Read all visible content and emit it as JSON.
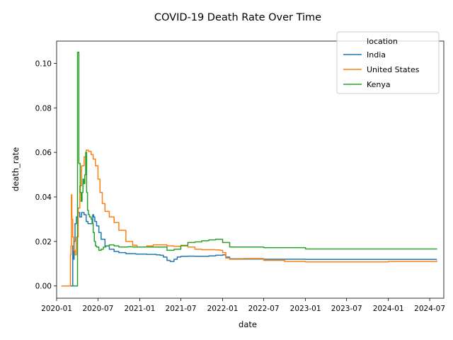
{
  "chart_data": {
    "type": "line",
    "title": "COVID-19 Death Rate Over Time",
    "xlabel": "date",
    "ylabel": "death_rate",
    "xlim": [
      "2020-01-01",
      "2024-09-01"
    ],
    "ylim": [
      -0.0055,
      0.11
    ],
    "xticks": [
      "2020-01",
      "2020-07",
      "2021-01",
      "2021-07",
      "2022-01",
      "2022-07",
      "2023-01",
      "2023-07",
      "2024-01",
      "2024-07"
    ],
    "yticks": [
      0.0,
      0.02,
      0.04,
      0.06,
      0.08,
      0.1
    ],
    "ytick_labels": [
      "0.00",
      "0.02",
      "0.04",
      "0.06",
      "0.08",
      "0.10"
    ],
    "grid": false,
    "legend": {
      "title": "location",
      "placement": "top-right"
    },
    "series": [
      {
        "name": "India",
        "color": "#1f77b4",
        "x": [
          "2020-01-30",
          "2020-03-10",
          "2020-03-12",
          "2020-03-15",
          "2020-03-18",
          "2020-03-22",
          "2020-03-28",
          "2020-04-05",
          "2020-04-12",
          "2020-04-20",
          "2020-05-01",
          "2020-05-10",
          "2020-05-18",
          "2020-05-25",
          "2020-06-01",
          "2020-06-08",
          "2020-06-12",
          "2020-06-17",
          "2020-06-25",
          "2020-07-05",
          "2020-07-15",
          "2020-08-01",
          "2020-08-20",
          "2020-09-10",
          "2020-10-01",
          "2020-11-01",
          "2020-12-15",
          "2021-02-01",
          "2021-03-15",
          "2021-04-01",
          "2021-04-15",
          "2021-05-01",
          "2021-05-15",
          "2021-06-01",
          "2021-06-15",
          "2021-07-01",
          "2021-08-01",
          "2021-09-01",
          "2021-10-01",
          "2021-11-01",
          "2021-12-01",
          "2022-01-01",
          "2022-01-15",
          "2022-02-01",
          "2022-04-01",
          "2022-07-01",
          "2023-01-01",
          "2024-08-01"
        ],
        "y": [
          0.0,
          0.0,
          0.018,
          0.012,
          0.02,
          0.028,
          0.031,
          0.033,
          0.031,
          0.033,
          0.032,
          0.029,
          0.028,
          0.028,
          0.028,
          0.032,
          0.031,
          0.029,
          0.027,
          0.024,
          0.021,
          0.018,
          0.0165,
          0.0155,
          0.015,
          0.0145,
          0.0143,
          0.0142,
          0.014,
          0.0138,
          0.013,
          0.0115,
          0.011,
          0.012,
          0.013,
          0.0133,
          0.0134,
          0.0133,
          0.0133,
          0.0135,
          0.0138,
          0.014,
          0.013,
          0.0122,
          0.0121,
          0.012,
          0.0119,
          0.0119
        ]
      },
      {
        "name": "United States",
        "color": "#ff7f0e",
        "x": [
          "2020-01-22",
          "2020-02-28",
          "2020-03-02",
          "2020-03-04",
          "2020-03-06",
          "2020-03-08",
          "2020-03-12",
          "2020-03-16",
          "2020-03-22",
          "2020-03-28",
          "2020-04-05",
          "2020-04-12",
          "2020-04-20",
          "2020-05-01",
          "2020-05-10",
          "2020-05-20",
          "2020-06-01",
          "2020-06-10",
          "2020-06-20",
          "2020-07-01",
          "2020-07-10",
          "2020-07-20",
          "2020-08-01",
          "2020-08-20",
          "2020-09-10",
          "2020-10-01",
          "2020-11-01",
          "2020-12-01",
          "2020-12-20",
          "2021-01-10",
          "2021-02-01",
          "2021-03-01",
          "2021-04-01",
          "2021-05-01",
          "2021-06-01",
          "2021-07-01",
          "2021-08-01",
          "2021-09-01",
          "2021-10-01",
          "2021-11-01",
          "2021-12-01",
          "2021-12-20",
          "2022-01-01",
          "2022-01-15",
          "2022-02-01",
          "2022-04-01",
          "2022-07-01",
          "2022-10-01",
          "2023-01-01",
          "2023-07-01",
          "2024-01-01",
          "2024-08-01"
        ],
        "y": [
          0.0,
          0.0,
          0.014,
          0.018,
          0.041,
          0.03,
          0.022,
          0.016,
          0.014,
          0.022,
          0.035,
          0.045,
          0.054,
          0.058,
          0.061,
          0.0605,
          0.059,
          0.057,
          0.054,
          0.048,
          0.042,
          0.037,
          0.0335,
          0.031,
          0.0285,
          0.025,
          0.02,
          0.0183,
          0.0175,
          0.0175,
          0.018,
          0.0185,
          0.0185,
          0.018,
          0.0178,
          0.018,
          0.0175,
          0.0165,
          0.0163,
          0.0163,
          0.0162,
          0.016,
          0.015,
          0.0125,
          0.012,
          0.0123,
          0.0115,
          0.011,
          0.0108,
          0.0108,
          0.011,
          0.0115
        ]
      },
      {
        "name": "Kenya",
        "color": "#2ca02c",
        "x": [
          "2020-03-13",
          "2020-03-25",
          "2020-03-27",
          "2020-03-29",
          "2020-03-31",
          "2020-04-02",
          "2020-04-04",
          "2020-04-08",
          "2020-04-14",
          "2020-04-18",
          "2020-04-22",
          "2020-04-26",
          "2020-04-30",
          "2020-05-04",
          "2020-05-08",
          "2020-05-12",
          "2020-05-16",
          "2020-05-20",
          "2020-05-25",
          "2020-06-01",
          "2020-06-05",
          "2020-06-10",
          "2020-06-15",
          "2020-06-20",
          "2020-06-25",
          "2020-07-05",
          "2020-07-15",
          "2020-07-25",
          "2020-08-05",
          "2020-08-20",
          "2020-09-10",
          "2020-10-01",
          "2020-10-20",
          "2020-11-10",
          "2020-12-01",
          "2021-01-01",
          "2021-02-01",
          "2021-03-01",
          "2021-04-01",
          "2021-05-01",
          "2021-06-01",
          "2021-07-01",
          "2021-08-01",
          "2021-09-01",
          "2021-10-01",
          "2021-11-01",
          "2021-12-01",
          "2021-12-15",
          "2022-01-01",
          "2022-02-01",
          "2022-04-01",
          "2022-06-01",
          "2022-07-01",
          "2023-01-01",
          "2024-08-01"
        ],
        "y": [
          0.0,
          0.0,
          0.0,
          0.0,
          0.0,
          0.105,
          0.105,
          0.055,
          0.042,
          0.038,
          0.042,
          0.048,
          0.046,
          0.05,
          0.06,
          0.042,
          0.034,
          0.032,
          0.031,
          0.03,
          0.028,
          0.024,
          0.02,
          0.018,
          0.0175,
          0.016,
          0.0165,
          0.0175,
          0.018,
          0.0185,
          0.018,
          0.0175,
          0.0175,
          0.0176,
          0.0175,
          0.0175,
          0.0175,
          0.0175,
          0.0175,
          0.016,
          0.0165,
          0.0182,
          0.0195,
          0.0198,
          0.0203,
          0.0207,
          0.021,
          0.021,
          0.0195,
          0.0175,
          0.0175,
          0.0175,
          0.0172,
          0.0166,
          0.0165
        ]
      }
    ]
  }
}
